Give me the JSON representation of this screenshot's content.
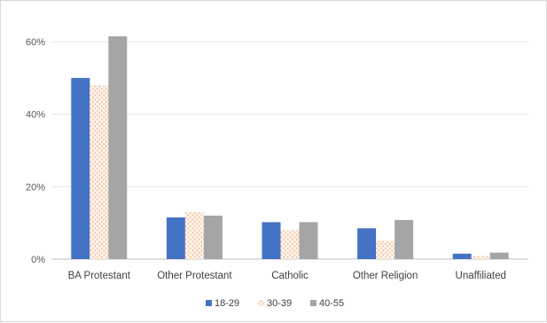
{
  "chart_data": {
    "type": "bar",
    "categories": [
      "BA Protestant",
      "Other Protestant",
      "Catholic",
      "Other Religion",
      "Unaffiliated"
    ],
    "series": [
      {
        "name": "18-29",
        "values": [
          50,
          11.5,
          10.2,
          8.5,
          1.5
        ],
        "color": "#4472c4",
        "pattern": "solid"
      },
      {
        "name": "30-39",
        "values": [
          48,
          13,
          8,
          5,
          1
        ],
        "color": "#f4b183",
        "pattern": "dotted"
      },
      {
        "name": "40-55",
        "values": [
          61.5,
          12,
          10.2,
          10.8,
          1.8
        ],
        "color": "#a5a5a5",
        "pattern": "solid"
      }
    ],
    "ylim": [
      0,
      60
    ],
    "yticks": [
      0,
      20,
      40,
      60
    ],
    "ytick_labels": [
      "0%",
      "20%",
      "40%",
      "60%"
    ],
    "grid": true,
    "legend_position": "bottom",
    "title": "",
    "xlabel": "",
    "ylabel": ""
  }
}
